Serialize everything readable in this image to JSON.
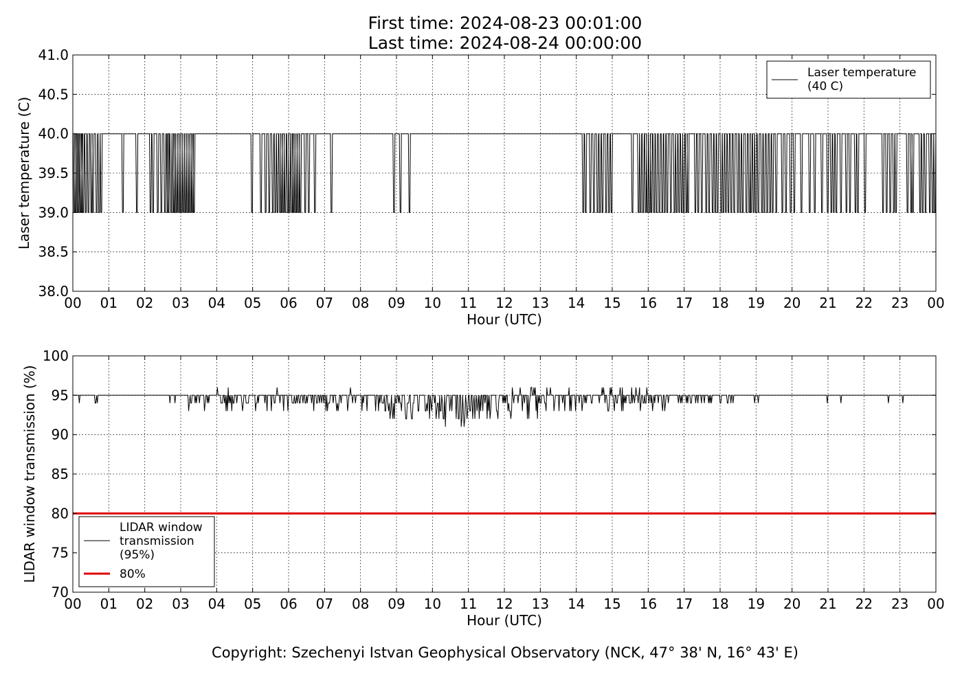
{
  "title": {
    "line1": "First time: 2024-08-23 00:01:00",
    "line2": "Last time: 2024-08-24 00:00:00"
  },
  "copyright": "Copyright: Szechenyi Istvan Geophysical Observatory (NCK, 47° 38' N, 16° 43' E)",
  "chart_data": [
    {
      "type": "line",
      "xlabel": "Hour (UTC)",
      "ylabel": "Laser temperature (C)",
      "xlim": [
        0,
        24
      ],
      "ylim": [
        38.0,
        41.0
      ],
      "xticks": [
        "00",
        "01",
        "02",
        "03",
        "04",
        "05",
        "06",
        "07",
        "08",
        "09",
        "10",
        "11",
        "12",
        "13",
        "14",
        "15",
        "16",
        "17",
        "18",
        "19",
        "20",
        "21",
        "22",
        "23",
        "00"
      ],
      "yticks": [
        "38.0",
        "38.5",
        "39.0",
        "39.5",
        "40.0",
        "40.5",
        "41.0"
      ],
      "grid": true,
      "legend_position": "top-right",
      "legend": [
        {
          "label_lines": [
            "Laser temperature",
            "(40 C)"
          ],
          "color": "#000000"
        }
      ],
      "baseline": 40.0,
      "series": [
        {
          "name": "Laser temperature (40 C)",
          "color": "#000000",
          "description_of_dips": "drops from 40.0 to 39.0 at the listed hours",
          "dip_value": 39.0,
          "dip_hours": [
            0.03,
            0.07,
            0.12,
            0.15,
            0.2,
            0.24,
            0.28,
            0.35,
            0.42,
            0.5,
            0.55,
            0.65,
            0.72,
            0.78,
            1.38,
            1.77,
            2.15,
            2.22,
            2.35,
            2.45,
            2.55,
            2.62,
            2.65,
            2.72,
            2.78,
            2.82,
            2.87,
            2.92,
            2.97,
            3.02,
            3.07,
            3.12,
            3.17,
            3.22,
            3.27,
            3.32,
            3.36,
            4.97,
            5.22,
            5.35,
            5.45,
            5.55,
            5.62,
            5.68,
            5.75,
            5.8,
            5.85,
            5.9,
            5.97,
            6.02,
            6.08,
            6.12,
            6.17,
            6.22,
            6.27,
            6.32,
            6.45,
            6.55,
            6.72,
            7.18,
            8.92,
            9.1,
            9.35,
            14.18,
            14.25,
            14.38,
            14.48,
            14.58,
            14.65,
            14.72,
            14.82,
            14.9,
            14.97,
            15.55,
            15.72,
            15.78,
            15.85,
            15.92,
            15.97,
            16.03,
            16.08,
            16.15,
            16.22,
            16.3,
            16.38,
            16.45,
            16.52,
            16.62,
            16.72,
            16.78,
            16.85,
            16.92,
            16.98,
            17.05,
            17.1,
            17.3,
            17.38,
            17.48,
            17.6,
            17.68,
            17.78,
            17.85,
            17.92,
            18.02,
            18.08,
            18.15,
            18.22,
            18.3,
            18.38,
            18.48,
            18.55,
            18.62,
            18.72,
            18.8,
            18.85,
            18.92,
            18.98,
            19.05,
            19.15,
            19.22,
            19.3,
            19.38,
            19.45,
            19.55,
            19.72,
            19.82,
            19.95,
            20.05,
            20.25,
            20.48,
            20.62,
            20.82,
            20.98,
            21.08,
            21.15,
            21.22,
            21.35,
            21.5,
            21.6,
            21.75,
            21.82,
            22.02,
            22.52,
            22.62,
            22.72,
            22.82,
            22.88,
            23.2,
            23.3,
            23.35,
            23.55,
            23.62,
            23.7,
            23.82,
            23.9,
            23.96
          ]
        }
      ]
    },
    {
      "type": "line",
      "xlabel": "Hour (UTC)",
      "ylabel": "LIDAR window transmission (%)",
      "xlim": [
        0,
        24
      ],
      "ylim": [
        70,
        100
      ],
      "xticks": [
        "00",
        "01",
        "02",
        "03",
        "04",
        "05",
        "06",
        "07",
        "08",
        "09",
        "10",
        "11",
        "12",
        "13",
        "14",
        "15",
        "16",
        "17",
        "18",
        "19",
        "20",
        "21",
        "22",
        "23",
        "00"
      ],
      "yticks": [
        "70",
        "75",
        "80",
        "85",
        "90",
        "95",
        "100"
      ],
      "grid": true,
      "legend_position": "bottom-left",
      "legend": [
        {
          "label_lines": [
            "LIDAR window",
            "transmission",
            "(95%)"
          ],
          "color": "#000000",
          "width": 1
        },
        {
          "label_lines": [
            "80%"
          ],
          "color": "#dd0000",
          "width": 3
        }
      ],
      "series": [
        {
          "name": "LIDAR window transmission (95%)",
          "color": "#000000",
          "baseline": 95,
          "noisy_segments": [
            {
              "from_hour": 3.2,
              "to_hour": 8.0,
              "mean": 94.8,
              "spread": 1.2
            },
            {
              "from_hour": 8.0,
              "to_hour": 8.8,
              "mean": 94.3,
              "spread": 1.2
            },
            {
              "from_hour": 8.8,
              "to_hour": 11.0,
              "mean": 93.5,
              "spread": 1.6
            },
            {
              "from_hour": 11.0,
              "to_hour": 13.0,
              "mean": 94.5,
              "spread": 2.0
            },
            {
              "from_hour": 13.0,
              "to_hour": 16.5,
              "mean": 94.8,
              "spread": 1.4
            },
            {
              "from_hour": 16.5,
              "to_hour": 18.3,
              "mean": 94.8,
              "spread": 0.8
            }
          ],
          "isolated_dips": [
            0.17,
            0.62,
            0.65,
            0.68,
            2.7,
            2.85,
            18.35,
            18.95,
            19.05,
            20.98,
            21.35,
            22.68,
            23.08
          ]
        },
        {
          "name": "80%",
          "color": "#dd0000",
          "constant": 80
        }
      ]
    }
  ]
}
